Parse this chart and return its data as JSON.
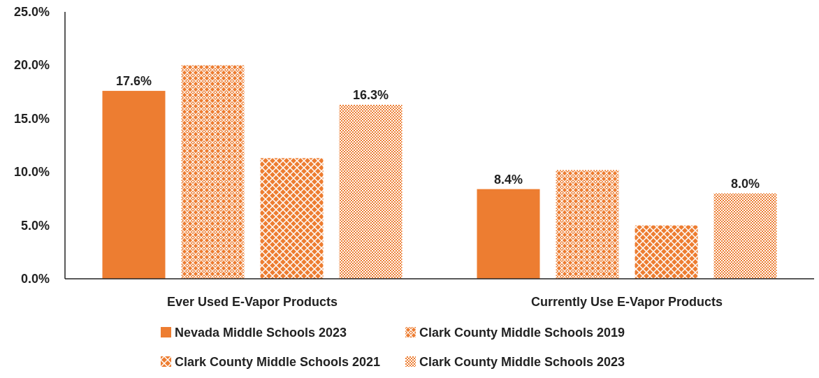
{
  "chart_data": {
    "type": "bar",
    "categories": [
      "Ever Used E-Vapor Products",
      "Currently Use E-Vapor Products"
    ],
    "series": [
      {
        "name": "Nevada Middle Schools 2023",
        "color": "#ed7d31",
        "values": [
          17.6,
          8.4
        ],
        "value_labels": [
          "17.6%",
          "8.4%"
        ]
      },
      {
        "name": "Clark County Middle Schools 2019",
        "color": "#ed7d31",
        "values": [
          20.0,
          10.2
        ],
        "value_labels": [
          null,
          null
        ]
      },
      {
        "name": "Clark County Middle Schools 2021",
        "color": "#ed7d31",
        "values": [
          11.3,
          5.0
        ],
        "value_labels": [
          null,
          null
        ]
      },
      {
        "name": "Clark County Middle Schools 2023",
        "color": "#ed7d31",
        "values": [
          16.3,
          8.0
        ],
        "value_labels": [
          "16.3%",
          "8.0%"
        ]
      }
    ],
    "ylim": [
      0,
      25
    ],
    "yticks": [
      {
        "value": 0,
        "label": "0.0%"
      },
      {
        "value": 5,
        "label": "5.0%"
      },
      {
        "value": 10,
        "label": "10.0%"
      },
      {
        "value": 15,
        "label": "15.0%"
      },
      {
        "value": 20,
        "label": "20.0%"
      },
      {
        "value": 25,
        "label": "25.0%"
      }
    ],
    "grid": false,
    "legend": "bottom"
  }
}
